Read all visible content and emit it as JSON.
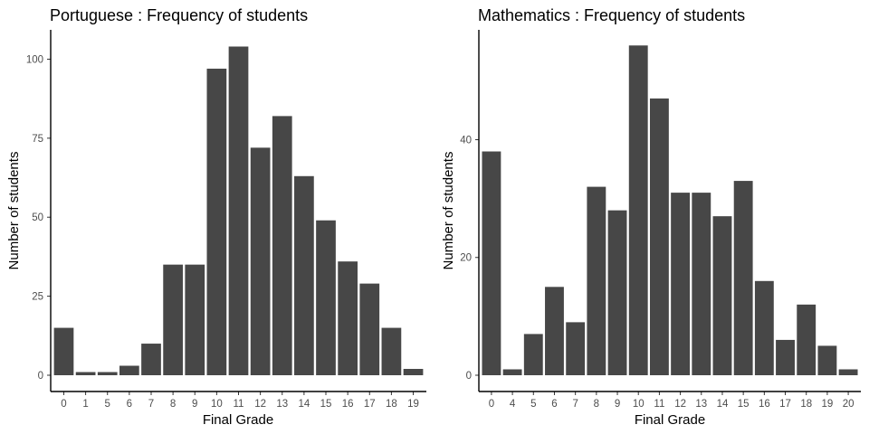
{
  "colors": {
    "bar": "#474747",
    "axis": "#000000",
    "tick_text": "#4d4d4d",
    "background": "#ffffff"
  },
  "chart_data": [
    {
      "type": "bar",
      "title": "Portuguese : Frequency of students",
      "xlabel": "Final Grade",
      "ylabel": "Number of students",
      "categories": [
        "0",
        "1",
        "5",
        "6",
        "7",
        "8",
        "9",
        "10",
        "11",
        "12",
        "13",
        "14",
        "15",
        "16",
        "17",
        "18",
        "19"
      ],
      "values": [
        15,
        1,
        1,
        3,
        10,
        35,
        35,
        97,
        104,
        72,
        82,
        63,
        49,
        36,
        29,
        15,
        2
      ],
      "ylim": [
        0,
        109
      ],
      "yticks": [
        0,
        25,
        50,
        75,
        100
      ],
      "grid": false
    },
    {
      "type": "bar",
      "title": "Mathematics : Frequency of students",
      "xlabel": "Final Grade",
      "ylabel": "Number of students",
      "categories": [
        "0",
        "4",
        "5",
        "6",
        "7",
        "8",
        "9",
        "10",
        "11",
        "12",
        "13",
        "14",
        "15",
        "16",
        "17",
        "18",
        "19",
        "20"
      ],
      "values": [
        38,
        1,
        7,
        15,
        9,
        32,
        28,
        56,
        47,
        31,
        31,
        27,
        33,
        16,
        6,
        12,
        5,
        1
      ],
      "ylim": [
        0,
        58.5
      ],
      "yticks": [
        0,
        20,
        40
      ],
      "grid": false
    }
  ]
}
